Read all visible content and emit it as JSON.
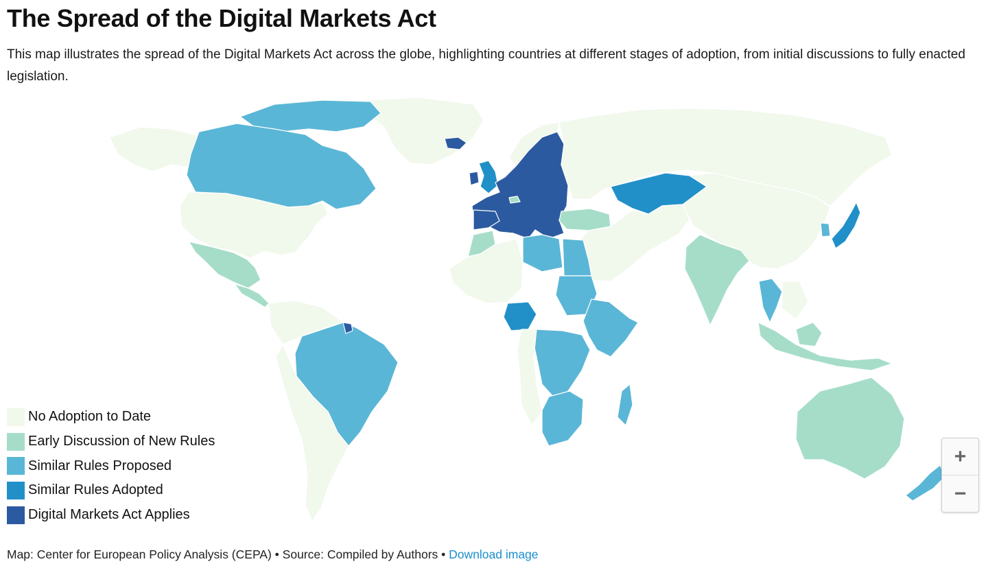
{
  "header": {
    "title": "The Spread of the Digital Markets Act",
    "subtitle": "This map illustrates the spread of the Digital Markets Act across the globe, highlighting countries at different stages of adoption, from initial discussions to fully enacted legislation."
  },
  "colors": {
    "none": "#f1f8ec",
    "early": "#a6ddc9",
    "proposed": "#5ab6d6",
    "adopted": "#2190c8",
    "applies": "#2c5aa0",
    "border": "#ffffff"
  },
  "legend": [
    {
      "label": "No Adoption to Date",
      "color": "#f1f8ec"
    },
    {
      "label": "Early Discussion of New Rules",
      "color": "#a6ddc9"
    },
    {
      "label": "Similar Rules Proposed",
      "color": "#5ab6d6"
    },
    {
      "label": "Similar Rules Adopted",
      "color": "#2190c8"
    },
    {
      "label": "Digital Markets Act Applies",
      "color": "#2c5aa0"
    }
  ],
  "map": {
    "status_by_region": {
      "Canada": "proposed",
      "United States": "none",
      "Mexico": "early",
      "Central America": "early",
      "Brazil": "proposed",
      "French Guiana": "applies",
      "Rest of South America": "none",
      "Greenland": "none",
      "Iceland": "applies",
      "United Kingdom": "adopted",
      "Ireland": "applies",
      "European Union": "applies",
      "Switzerland": "early",
      "Norway": "none",
      "Turkey": "early",
      "Russia": "none",
      "Kazakhstan": "adopted",
      "Morocco": "early",
      "Libya": "proposed",
      "Egypt": "proposed",
      "Sudan": "proposed",
      "Nigeria": "adopted",
      "Ethiopia and East Africa": "proposed",
      "Central Africa": "proposed",
      "Southern Africa": "proposed",
      "Madagascar": "proposed",
      "India": "early",
      "Myanmar and Thailand": "proposed",
      "Southeast Asia": "early",
      "China": "none",
      "South Korea": "proposed",
      "Japan": "adopted",
      "Australia": "early",
      "New Zealand": "proposed"
    }
  },
  "zoom": {
    "in_label": "+",
    "out_label": "−"
  },
  "footer": {
    "credit": "Map: Center for European Policy Analysis (CEPA) • Source: Compiled by Authors • ",
    "link": "Download image"
  }
}
